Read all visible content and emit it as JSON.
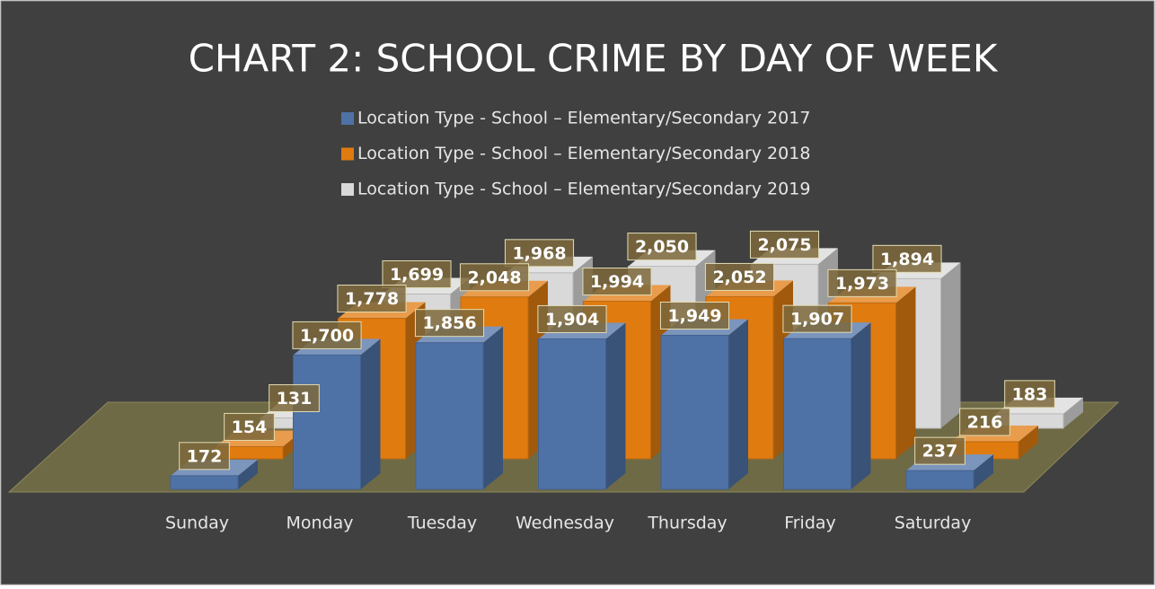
{
  "chart_data": {
    "type": "bar3d",
    "title": "CHART 2: SCHOOL CRIME BY DAY OF WEEK",
    "categories": [
      "Sunday",
      "Monday",
      "Tuesday",
      "Wednesday",
      "Thursday",
      "Friday",
      "Saturday"
    ],
    "series": [
      {
        "name": "Location Type - School – Elementary/Secondary 2017",
        "color": "#4f72a6",
        "values": [
          172,
          1700,
          1856,
          1904,
          1949,
          1907,
          237
        ],
        "value_labels": [
          "172",
          "1,700",
          "1,856",
          "1,904",
          "1,949",
          "1,907",
          "237"
        ]
      },
      {
        "name": "Location Type - School – Elementary/Secondary 2018",
        "color": "#e07b10",
        "values": [
          154,
          1778,
          2048,
          1994,
          2052,
          1973,
          216
        ],
        "value_labels": [
          "154",
          "1,778",
          "2,048",
          "1,994",
          "2,052",
          "1,973",
          "216"
        ]
      },
      {
        "name": "Location Type - School – Elementary/Secondary 2019",
        "color": "#d9d9d9",
        "values": [
          131,
          1699,
          1968,
          2050,
          2075,
          1894,
          183
        ],
        "value_labels": [
          "131",
          "1,699",
          "1,968",
          "2,050",
          "2,075",
          "1,894",
          "183"
        ]
      }
    ]
  }
}
